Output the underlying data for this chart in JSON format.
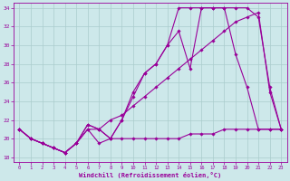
{
  "xlabel": "Windchill (Refroidissement éolien,°C)",
  "background_color": "#cde8ea",
  "line_color": "#990099",
  "grid_color": "#aacccc",
  "xlim": [
    -0.5,
    23.5
  ],
  "ylim": [
    17.5,
    34.5
  ],
  "yticks": [
    18,
    20,
    22,
    24,
    26,
    28,
    30,
    32,
    34
  ],
  "xticks": [
    0,
    1,
    2,
    3,
    4,
    5,
    6,
    7,
    8,
    9,
    10,
    11,
    12,
    13,
    14,
    15,
    16,
    17,
    18,
    19,
    20,
    21,
    22,
    23
  ],
  "lines": [
    {
      "x": [
        0,
        1,
        2,
        3,
        4,
        5,
        6,
        7,
        8,
        9,
        10,
        11,
        12,
        13,
        14,
        15,
        16,
        17,
        18,
        19,
        20,
        21,
        22,
        23
      ],
      "y": [
        21,
        20,
        19.5,
        19,
        18.5,
        19.5,
        21,
        19.5,
        20,
        20,
        20,
        20,
        20,
        20,
        20,
        20.5,
        20.5,
        20.5,
        21,
        21,
        21,
        21,
        21,
        21
      ]
    },
    {
      "x": [
        0,
        1,
        2,
        3,
        4,
        5,
        6,
        7,
        8,
        9,
        10,
        11,
        12,
        13,
        14,
        15,
        16,
        17,
        18,
        19,
        20,
        21,
        22,
        23
      ],
      "y": [
        21,
        20,
        19.5,
        19,
        18.5,
        19.5,
        21,
        21,
        22,
        22.5,
        23.5,
        24.5,
        25.5,
        26.5,
        27.5,
        28.5,
        29.5,
        30.5,
        31.5,
        32.5,
        33,
        33.5,
        25,
        21
      ]
    },
    {
      "x": [
        0,
        1,
        2,
        3,
        4,
        5,
        6,
        7,
        8,
        9,
        10,
        11,
        12,
        13,
        14,
        15,
        16,
        17,
        18,
        19,
        20,
        21,
        22,
        23
      ],
      "y": [
        21,
        20,
        19.5,
        19,
        18.5,
        19.5,
        21.5,
        21,
        20,
        22,
        24.5,
        27,
        28,
        30,
        31.5,
        27.5,
        34,
        34,
        34,
        34,
        34,
        33,
        25.5,
        21
      ]
    },
    {
      "x": [
        0,
        1,
        2,
        3,
        4,
        5,
        6,
        7,
        8,
        9,
        10,
        11,
        12,
        13,
        14,
        15,
        16,
        17,
        18,
        19,
        20,
        21,
        22,
        23
      ],
      "y": [
        21,
        20,
        19.5,
        19,
        18.5,
        19.5,
        21.5,
        21,
        20,
        22,
        25,
        27,
        28,
        30,
        34,
        34,
        34,
        34,
        34,
        29,
        25.5,
        21,
        21,
        21
      ]
    }
  ]
}
